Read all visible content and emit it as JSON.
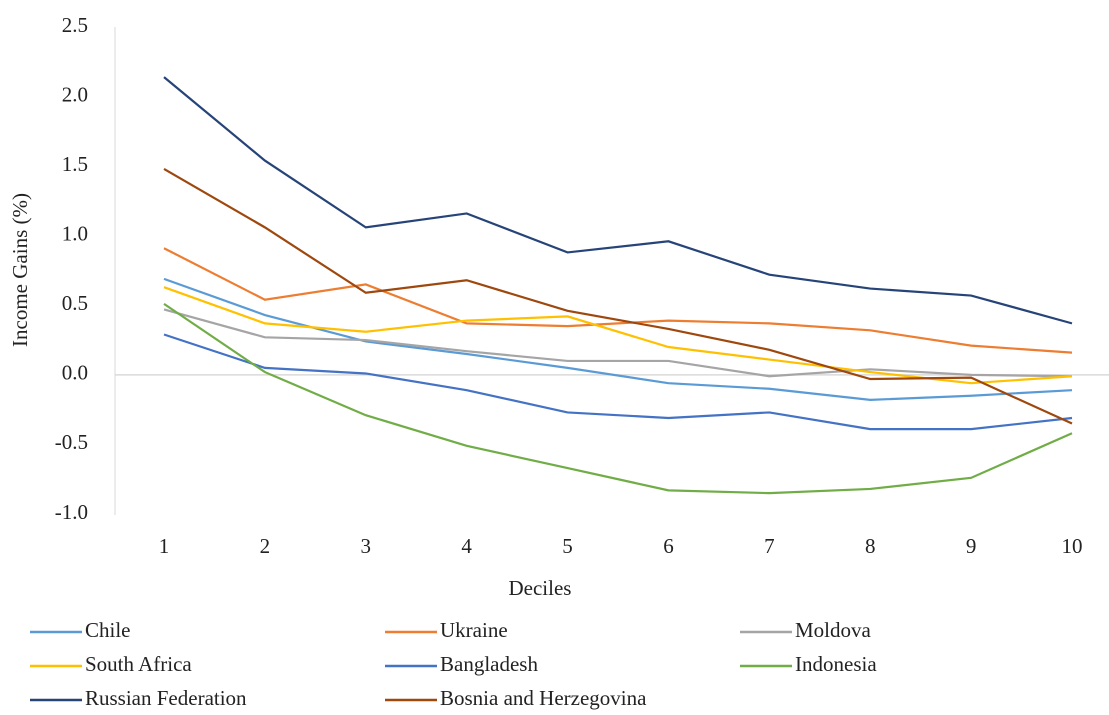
{
  "chart_data": {
    "type": "line",
    "x_label": "Deciles",
    "y_label": "Income Gains (%)",
    "categories": [
      "1",
      "2",
      "3",
      "4",
      "5",
      "6",
      "7",
      "8",
      "9",
      "10"
    ],
    "ylim": [
      -1.0,
      2.5
    ],
    "yticks": [
      {
        "value": -1,
        "label": "-1.0"
      },
      -0.5,
      {
        "value": 0,
        "label": "0.0"
      },
      0.5,
      {
        "value": 1,
        "label": "1.0"
      },
      1.5,
      {
        "value": 2,
        "label": "2.0"
      },
      2.5
    ],
    "series": [
      {
        "name": "Chile",
        "color": "#5b9bd5",
        "values": [
          0.69,
          0.43,
          0.24,
          0.15,
          0.05,
          -0.06,
          -0.1,
          -0.18,
          -0.15,
          -0.11
        ]
      },
      {
        "name": "Ukraine",
        "color": "#ed7d31",
        "values": [
          0.91,
          0.54,
          0.65,
          0.37,
          0.35,
          0.39,
          0.37,
          0.32,
          0.21,
          0.16
        ]
      },
      {
        "name": "Moldova",
        "color": "#a5a5a5",
        "values": [
          0.47,
          0.27,
          0.25,
          0.17,
          0.1,
          0.1,
          -0.01,
          0.04,
          0.0,
          -0.01
        ]
      },
      {
        "name": "South Africa",
        "color": "#ffc000",
        "values": [
          0.63,
          0.37,
          0.31,
          0.39,
          0.42,
          0.2,
          0.11,
          0.02,
          -0.06,
          -0.01
        ]
      },
      {
        "name": "Bangladesh",
        "color": "#4472c4",
        "values": [
          0.29,
          0.05,
          0.01,
          -0.11,
          -0.27,
          -0.31,
          -0.27,
          -0.39,
          -0.39,
          -0.31
        ]
      },
      {
        "name": "Indonesia",
        "color": "#70ad47",
        "values": [
          0.51,
          0.02,
          -0.29,
          -0.51,
          -0.67,
          -0.83,
          -0.85,
          -0.82,
          -0.74,
          -0.42
        ]
      },
      {
        "name": "Russian Federation",
        "color": "#264478",
        "values": [
          2.14,
          1.54,
          1.06,
          1.16,
          0.88,
          0.96,
          0.72,
          0.62,
          0.57,
          0.37
        ]
      },
      {
        "name": "Bosnia and Herzegovina",
        "color": "#9e480e",
        "values": [
          1.48,
          1.06,
          0.59,
          0.68,
          0.46,
          0.33,
          0.18,
          -0.03,
          -0.02,
          -0.35
        ]
      }
    ]
  }
}
